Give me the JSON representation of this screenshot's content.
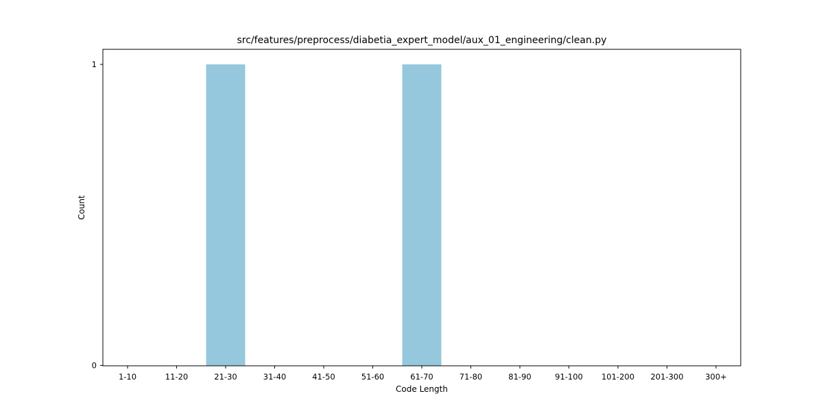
{
  "chart_data": {
    "type": "bar",
    "title": "src/features/preprocess/diabetia_expert_model/aux_01_engineering/clean.py",
    "xlabel": "Code Length",
    "ylabel": "Count",
    "categories": [
      "1-10",
      "11-20",
      "21-30",
      "31-40",
      "41-50",
      "51-60",
      "61-70",
      "71-80",
      "81-90",
      "91-100",
      "101-200",
      "201-300",
      "300+"
    ],
    "values": [
      0,
      0,
      1,
      0,
      0,
      0,
      1,
      0,
      0,
      0,
      0,
      0,
      0
    ],
    "ylim": [
      0,
      1
    ],
    "yticks": [
      0,
      1
    ],
    "grid": false,
    "bar_color": "#95c8dc"
  }
}
